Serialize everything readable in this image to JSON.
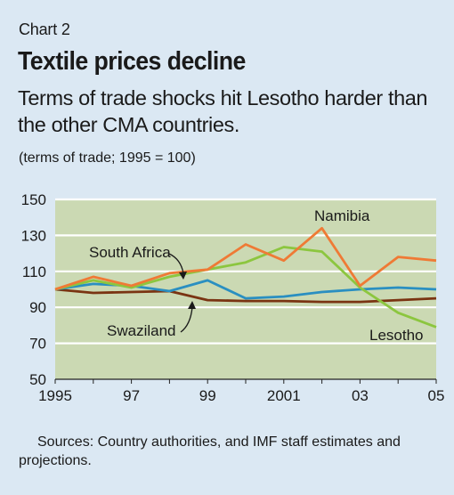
{
  "header": {
    "chart_label": "Chart 2",
    "title": "Textile prices decline",
    "subtitle": "Terms of trade shocks hit Lesotho harder than the other CMA countries.",
    "unit_note": "(terms of trade; 1995 = 100)"
  },
  "footer": {
    "source": "Sources: Country authorities, and IMF staff estimates and projections."
  },
  "colors": {
    "background": "#dbe8f3",
    "plot_area": "#cbd9b3",
    "Namibia": "#ef7a35",
    "South Africa": "#2a8fc1",
    "Lesotho": "#8cc63f",
    "Swaziland": "#7a3412"
  },
  "chart_data": {
    "type": "line",
    "x": [
      1995,
      1996,
      1997,
      1998,
      1999,
      2000,
      2001,
      2002,
      2003,
      2004,
      2005
    ],
    "x_tick_labels": [
      "1995",
      "97",
      "99",
      "2001",
      "03",
      "05"
    ],
    "x_tick_values": [
      1995,
      1997,
      1999,
      2001,
      2003,
      2005
    ],
    "y_ticks": [
      50,
      70,
      90,
      110,
      130,
      150
    ],
    "ylim": [
      50,
      150
    ],
    "xlim": [
      1995,
      2005
    ],
    "grid": "horizontal",
    "series": [
      {
        "name": "Namibia",
        "values": [
          100,
          107,
          102,
          109,
          111,
          125,
          116,
          134,
          102,
          118,
          116
        ]
      },
      {
        "name": "South Africa",
        "values": [
          100,
          103,
          102,
          99,
          105,
          95,
          96,
          98.5,
          100,
          101,
          100
        ]
      },
      {
        "name": "Lesotho",
        "values": [
          100,
          105,
          101,
          107,
          111,
          115,
          123.5,
          121,
          101,
          87,
          79
        ]
      },
      {
        "name": "Swaziland",
        "values": [
          100,
          98,
          98.5,
          99,
          94,
          93.5,
          93.5,
          93,
          93,
          94,
          95
        ]
      }
    ]
  }
}
